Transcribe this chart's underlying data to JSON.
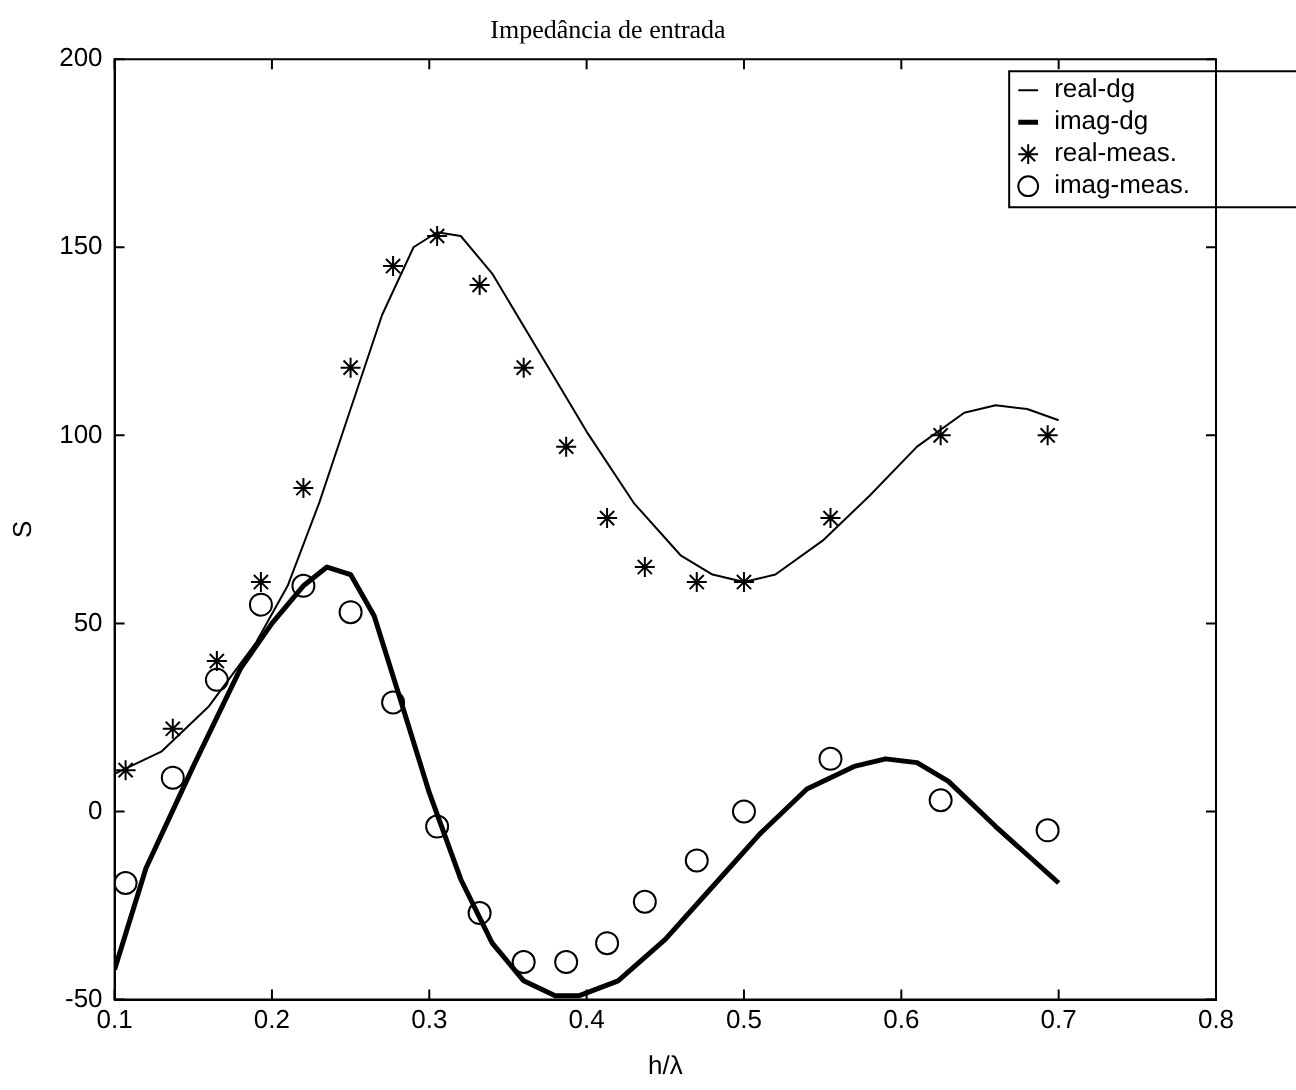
{
  "chart_data": {
    "type": "line",
    "title": "Impedância de entrada",
    "xlabel": "h/λ",
    "ylabel": "S",
    "xlim": [
      0.1,
      0.8
    ],
    "xticks": [
      0.1,
      0.2,
      0.3,
      0.4,
      0.5,
      0.6,
      0.7,
      0.8
    ],
    "ylim": [
      -50,
      200
    ],
    "yticks": [
      -50,
      0,
      50,
      100,
      150,
      200
    ],
    "grid": false,
    "legend": "top right",
    "series": [
      {
        "name": "real-dg",
        "type": "line",
        "marker": "none",
        "color": "#000000",
        "x": [
          0.1,
          0.13,
          0.16,
          0.19,
          0.21,
          0.23,
          0.25,
          0.27,
          0.29,
          0.305,
          0.32,
          0.34,
          0.37,
          0.4,
          0.43,
          0.46,
          0.48,
          0.5,
          0.52,
          0.55,
          0.58,
          0.61,
          0.64,
          0.66,
          0.68,
          0.7
        ],
        "values": [
          10,
          16,
          28,
          45,
          60,
          82,
          107,
          132,
          150,
          154,
          153,
          143,
          122,
          101,
          82,
          68,
          63,
          61,
          63,
          72,
          84,
          97,
          106,
          108,
          107,
          104
        ]
      },
      {
        "name": "imag-dg",
        "type": "line",
        "marker": "none",
        "color": "#000000",
        "x": [
          0.1,
          0.12,
          0.15,
          0.18,
          0.2,
          0.22,
          0.235,
          0.25,
          0.265,
          0.28,
          0.3,
          0.32,
          0.34,
          0.36,
          0.38,
          0.395,
          0.42,
          0.45,
          0.48,
          0.51,
          0.54,
          0.57,
          0.59,
          0.61,
          0.63,
          0.66,
          0.7
        ],
        "values": [
          -42,
          -15,
          12,
          38,
          50,
          60,
          65,
          63,
          52,
          32,
          5,
          -18,
          -35,
          -45,
          -49,
          -49,
          -45,
          -34,
          -20,
          -6,
          6,
          12,
          14,
          13,
          8,
          -4,
          -19
        ]
      },
      {
        "name": "real-meas.",
        "type": "scatter",
        "marker": "cross",
        "color": "#000000",
        "x": [
          0.107,
          0.137,
          0.165,
          0.193,
          0.22,
          0.25,
          0.277,
          0.305,
          0.332,
          0.36,
          0.387,
          0.413,
          0.437,
          0.47,
          0.5,
          0.555,
          0.625,
          0.693
        ],
        "values": [
          11,
          22,
          40,
          61,
          86,
          118,
          145,
          153,
          140,
          118,
          97,
          78,
          65,
          61,
          61,
          78,
          100,
          100
        ]
      },
      {
        "name": "imag-meas.",
        "type": "scatter",
        "marker": "circle",
        "color": "#000000",
        "x": [
          0.107,
          0.137,
          0.165,
          0.193,
          0.22,
          0.25,
          0.277,
          0.305,
          0.332,
          0.36,
          0.387,
          0.413,
          0.437,
          0.47,
          0.5,
          0.555,
          0.625,
          0.693
        ],
        "values": [
          -19,
          9,
          35,
          55,
          60,
          53,
          29,
          -4,
          -27,
          -40,
          -40,
          -35,
          -24,
          -13,
          0,
          14,
          3,
          -5
        ]
      }
    ]
  }
}
